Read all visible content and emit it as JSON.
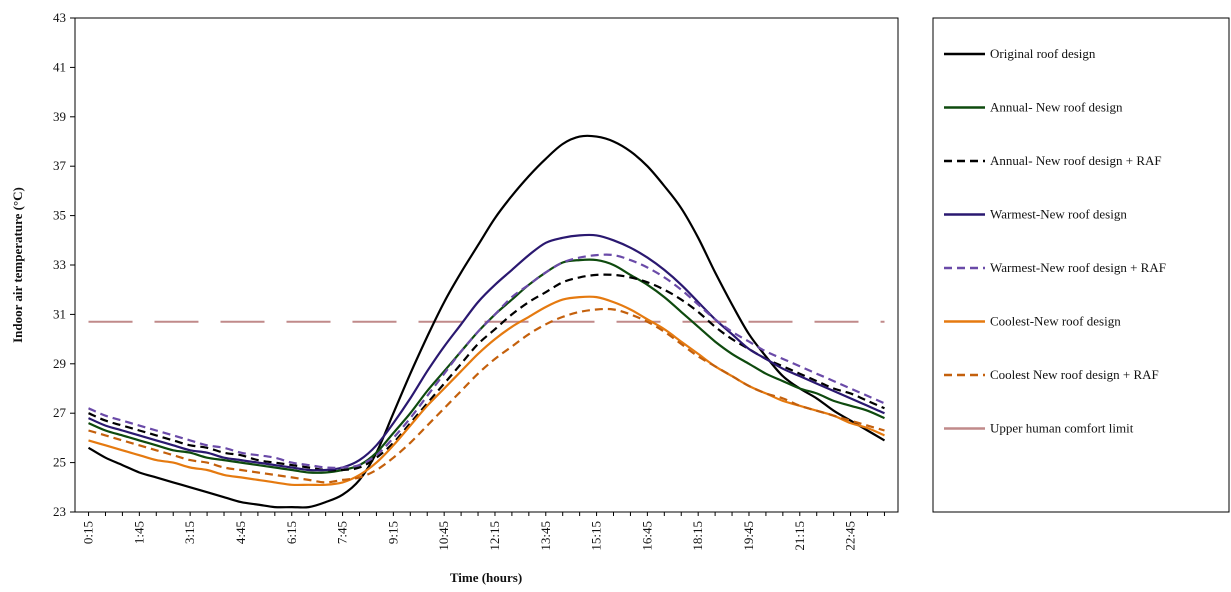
{
  "chart_data": {
    "type": "line",
    "title": "",
    "xlabel": "Time (hours)",
    "ylabel": "Indoor air temperature (°C)",
    "ylim": [
      23,
      43
    ],
    "yticks": [
      23,
      25,
      27,
      29,
      31,
      33,
      35,
      37,
      39,
      41,
      43
    ],
    "x_tick_labels": [
      "0:15",
      "1:45",
      "3:15",
      "4:45",
      "6:15",
      "7:45",
      "9:15",
      "10:45",
      "12:15",
      "13:45",
      "15:15",
      "16:45",
      "18:15",
      "19:45",
      "21:15",
      "22:45"
    ],
    "x_values": [
      0,
      1,
      2,
      3,
      4,
      5,
      6,
      7,
      8,
      9,
      10,
      11,
      12,
      13,
      14,
      15,
      16,
      17,
      18,
      19,
      20,
      21,
      22,
      23,
      24,
      25,
      26,
      27,
      28,
      29,
      30,
      31,
      32,
      33,
      34,
      35,
      36,
      37,
      38,
      39,
      40,
      41,
      42,
      43,
      44,
      45,
      46,
      47
    ],
    "grid": false,
    "legend_position": "right",
    "series": [
      {
        "name": "Original roof design",
        "color": "#000000",
        "dash": "solid",
        "values": [
          25.6,
          25.2,
          24.9,
          24.6,
          24.4,
          24.2,
          24.0,
          23.8,
          23.6,
          23.4,
          23.3,
          23.2,
          23.2,
          23.2,
          23.4,
          23.7,
          24.3,
          25.4,
          27.0,
          28.6,
          30.1,
          31.5,
          32.7,
          33.8,
          34.9,
          35.8,
          36.6,
          37.3,
          37.9,
          38.2,
          38.2,
          38.0,
          37.6,
          37.0,
          36.2,
          35.3,
          34.1,
          32.7,
          31.4,
          30.2,
          29.3,
          28.5,
          28.0,
          27.6,
          27.1,
          26.7,
          26.3,
          25.9
        ]
      },
      {
        "name": "Annual- New roof design",
        "color": "#0e4a0e",
        "dash": "solid",
        "values": [
          26.6,
          26.3,
          26.1,
          25.9,
          25.7,
          25.5,
          25.4,
          25.2,
          25.1,
          25.0,
          24.9,
          24.8,
          24.7,
          24.6,
          24.6,
          24.7,
          24.9,
          25.4,
          26.2,
          27.0,
          27.9,
          28.7,
          29.5,
          30.3,
          31.0,
          31.6,
          32.2,
          32.7,
          33.1,
          33.2,
          33.2,
          33.0,
          32.6,
          32.2,
          31.7,
          31.1,
          30.5,
          29.9,
          29.4,
          29.0,
          28.6,
          28.3,
          28.0,
          27.8,
          27.5,
          27.3,
          27.1,
          26.8
        ]
      },
      {
        "name": "Annual- New roof design + RAF",
        "color": "#000000",
        "dash": "dash",
        "values": [
          27.0,
          26.7,
          26.5,
          26.3,
          26.1,
          25.9,
          25.7,
          25.6,
          25.4,
          25.3,
          25.1,
          25.0,
          24.9,
          24.8,
          24.7,
          24.7,
          24.8,
          25.2,
          25.8,
          26.6,
          27.4,
          28.2,
          29.0,
          29.8,
          30.4,
          31.0,
          31.5,
          31.9,
          32.3,
          32.5,
          32.6,
          32.6,
          32.5,
          32.3,
          32.0,
          31.6,
          31.1,
          30.5,
          30.0,
          29.6,
          29.2,
          28.9,
          28.6,
          28.3,
          28.0,
          27.8,
          27.5,
          27.2
        ]
      },
      {
        "name": "Warmest-New roof design",
        "color": "#2a1870",
        "dash": "solid",
        "values": [
          26.8,
          26.5,
          26.3,
          26.1,
          25.9,
          25.7,
          25.5,
          25.4,
          25.2,
          25.1,
          25.0,
          24.9,
          24.8,
          24.7,
          24.7,
          24.8,
          25.1,
          25.7,
          26.6,
          27.6,
          28.7,
          29.7,
          30.6,
          31.5,
          32.2,
          32.8,
          33.4,
          33.9,
          34.1,
          34.2,
          34.2,
          34.0,
          33.7,
          33.3,
          32.8,
          32.2,
          31.5,
          30.8,
          30.2,
          29.6,
          29.2,
          28.8,
          28.5,
          28.2,
          27.9,
          27.6,
          27.3,
          27.0
        ]
      },
      {
        "name": "Warmest-New roof design + RAF",
        "color": "#6a4aa8",
        "dash": "dash",
        "values": [
          27.2,
          26.9,
          26.7,
          26.5,
          26.3,
          26.1,
          25.9,
          25.7,
          25.6,
          25.4,
          25.3,
          25.2,
          25.0,
          24.9,
          24.8,
          24.8,
          24.9,
          25.3,
          26.0,
          26.8,
          27.7,
          28.6,
          29.5,
          30.3,
          31.0,
          31.7,
          32.2,
          32.7,
          33.1,
          33.3,
          33.4,
          33.4,
          33.2,
          32.9,
          32.5,
          32.0,
          31.4,
          30.8,
          30.3,
          29.9,
          29.5,
          29.2,
          28.9,
          28.6,
          28.3,
          28.0,
          27.7,
          27.4
        ]
      },
      {
        "name": "Coolest-New roof design",
        "color": "#e57a10",
        "dash": "solid",
        "values": [
          25.9,
          25.7,
          25.5,
          25.3,
          25.1,
          25.0,
          24.8,
          24.7,
          24.5,
          24.4,
          24.3,
          24.2,
          24.1,
          24.1,
          24.1,
          24.2,
          24.5,
          25.0,
          25.7,
          26.5,
          27.3,
          28.0,
          28.7,
          29.4,
          30.0,
          30.5,
          30.9,
          31.3,
          31.6,
          31.7,
          31.7,
          31.5,
          31.2,
          30.8,
          30.4,
          29.9,
          29.4,
          28.9,
          28.5,
          28.1,
          27.8,
          27.5,
          27.3,
          27.1,
          26.9,
          26.6,
          26.4,
          26.1
        ]
      },
      {
        "name": "Coolest New roof design + RAF",
        "color": "#c4600c",
        "dash": "dash",
        "values": [
          26.3,
          26.1,
          25.9,
          25.7,
          25.5,
          25.3,
          25.1,
          25.0,
          24.8,
          24.7,
          24.6,
          24.5,
          24.4,
          24.3,
          24.2,
          24.3,
          24.4,
          24.7,
          25.2,
          25.8,
          26.5,
          27.2,
          27.9,
          28.6,
          29.2,
          29.7,
          30.2,
          30.6,
          30.9,
          31.1,
          31.2,
          31.2,
          31.0,
          30.7,
          30.3,
          29.8,
          29.3,
          28.9,
          28.5,
          28.1,
          27.8,
          27.6,
          27.3,
          27.1,
          26.9,
          26.7,
          26.5,
          26.3
        ]
      },
      {
        "name": "Upper human comfort limit",
        "color": "#c08a8a",
        "dash": "longdash",
        "values": [
          30.7,
          30.7,
          30.7,
          30.7,
          30.7,
          30.7,
          30.7,
          30.7,
          30.7,
          30.7,
          30.7,
          30.7,
          30.7,
          30.7,
          30.7,
          30.7,
          30.7,
          30.7,
          30.7,
          30.7,
          30.7,
          30.7,
          30.7,
          30.7,
          30.7,
          30.7,
          30.7,
          30.7,
          30.7,
          30.7,
          30.7,
          30.7,
          30.7,
          30.7,
          30.7,
          30.7,
          30.7,
          30.7,
          30.7,
          30.7,
          30.7,
          30.7,
          30.7,
          30.7,
          30.7,
          30.7,
          30.7,
          30.7
        ]
      }
    ]
  }
}
